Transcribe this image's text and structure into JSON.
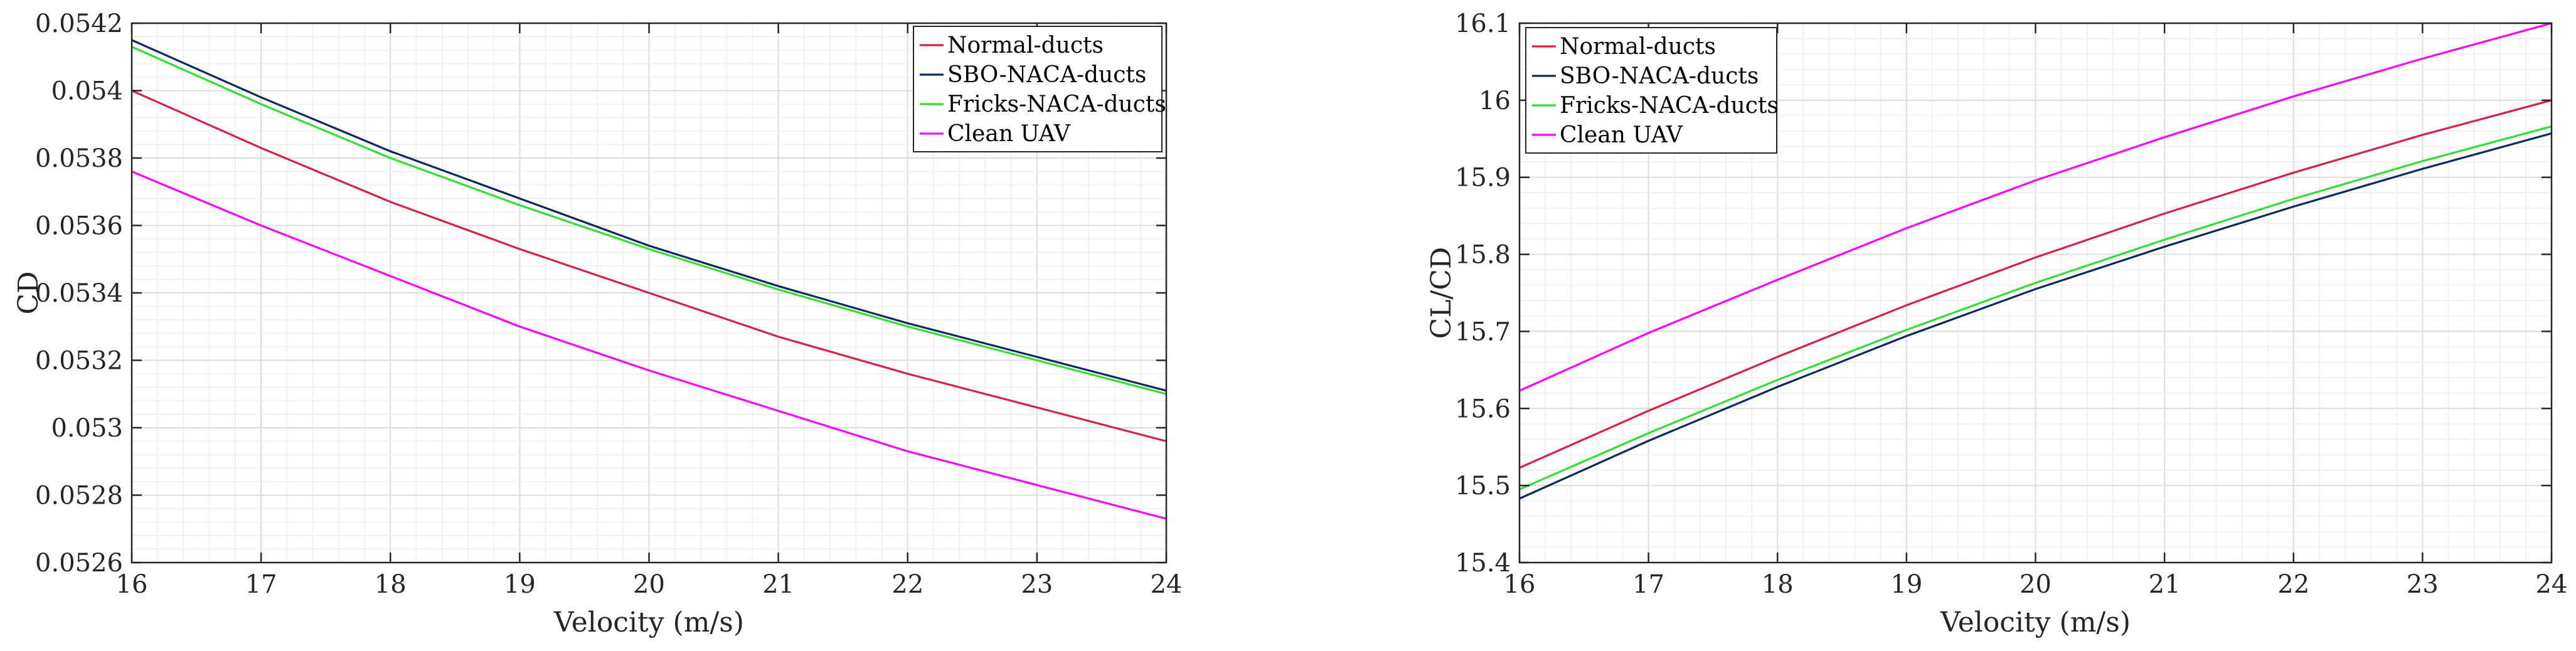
{
  "chart_data": [
    {
      "type": "line",
      "title": "",
      "xlabel": "Velocity (m/s)",
      "ylabel": "CD",
      "xlim": [
        16,
        24
      ],
      "ylim": [
        0.0526,
        0.0542
      ],
      "xticks": [
        "16",
        "17",
        "18",
        "19",
        "20",
        "21",
        "22",
        "23",
        "24"
      ],
      "yticks": [
        "0.0526",
        "0.0528",
        "0.053",
        "0.0532",
        "0.0534",
        "0.0536",
        "0.0538",
        "0.054",
        "0.0542"
      ],
      "grid": true,
      "legend_position": "top-right",
      "x": [
        16,
        17,
        18,
        19,
        20,
        21,
        22,
        23,
        24
      ],
      "series": [
        {
          "name": "Normal-ducts",
          "color": "#d62246",
          "values": [
            0.054,
            0.05383,
            0.05367,
            0.05353,
            0.0534,
            0.05327,
            0.05316,
            0.05306,
            0.05296
          ]
        },
        {
          "name": "SBO-NACA-ducts",
          "color": "#0b2a5c",
          "values": [
            0.05415,
            0.05398,
            0.05382,
            0.05368,
            0.05354,
            0.05342,
            0.05331,
            0.05321,
            0.05311
          ]
        },
        {
          "name": "Fricks-NACA-ducts",
          "color": "#33dd33",
          "values": [
            0.05413,
            0.05396,
            0.0538,
            0.05366,
            0.05353,
            0.05341,
            0.0533,
            0.0532,
            0.0531
          ]
        },
        {
          "name": "Clean UAV",
          "color": "#ff00ff",
          "values": [
            0.05376,
            0.0536,
            0.05345,
            0.0533,
            0.05317,
            0.05305,
            0.05293,
            0.05283,
            0.05273
          ]
        }
      ]
    },
    {
      "type": "line",
      "title": "",
      "xlabel": "Velocity (m/s)",
      "ylabel": "CL/CD",
      "xlim": [
        16,
        24
      ],
      "ylim": [
        15.4,
        16.1
      ],
      "xticks": [
        "16",
        "17",
        "18",
        "19",
        "20",
        "21",
        "22",
        "23",
        "24"
      ],
      "yticks": [
        "15.4",
        "15.5",
        "15.6",
        "15.7",
        "15.8",
        "15.9",
        "16",
        "16.1"
      ],
      "grid": true,
      "legend_position": "top-left",
      "x": [
        16,
        17,
        18,
        19,
        20,
        21,
        22,
        23,
        24
      ],
      "series": [
        {
          "name": "Normal-ducts",
          "color": "#d62246",
          "values": [
            15.523,
            15.597,
            15.667,
            15.734,
            15.796,
            15.853,
            15.906,
            15.955,
            16.0
          ]
        },
        {
          "name": "SBO-NACA-ducts",
          "color": "#0b2a5c",
          "values": [
            15.483,
            15.558,
            15.628,
            15.694,
            15.755,
            15.81,
            15.862,
            15.911,
            15.957
          ]
        },
        {
          "name": "Fricks-NACA-ducts",
          "color": "#33dd33",
          "values": [
            15.495,
            15.568,
            15.637,
            15.702,
            15.763,
            15.819,
            15.872,
            15.921,
            15.966
          ]
        },
        {
          "name": "Clean UAV",
          "color": "#ff00ff",
          "values": [
            15.623,
            15.698,
            15.767,
            15.834,
            15.896,
            15.952,
            16.005,
            16.054,
            16.1
          ]
        }
      ]
    }
  ]
}
